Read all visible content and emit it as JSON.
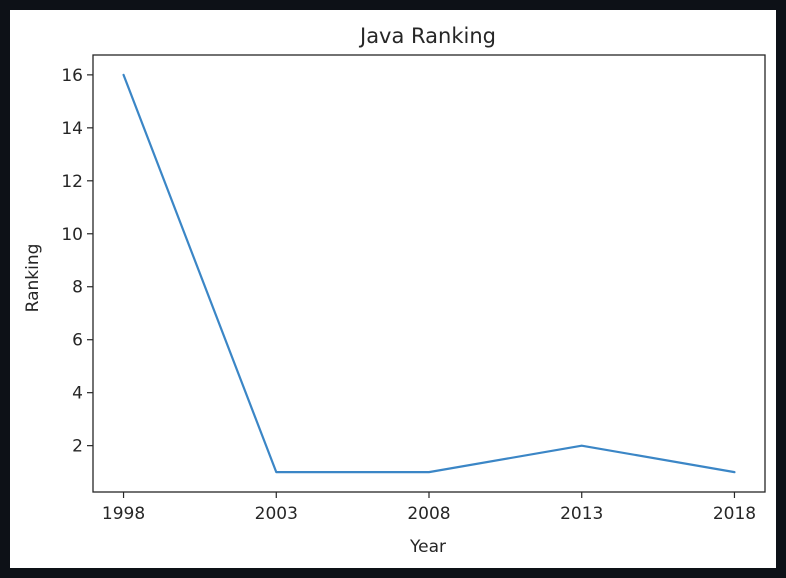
{
  "page": {
    "background": "#0d1117",
    "card_background": "#ffffff"
  },
  "chart_data": {
    "type": "line",
    "title": "Java Ranking",
    "xlabel": "Year",
    "ylabel": "Ranking",
    "x": [
      1998,
      2003,
      2008,
      2013,
      2018
    ],
    "series": [
      {
        "values": [
          16,
          1,
          1,
          2,
          1
        ],
        "color": "#3b86c6"
      }
    ],
    "xticks": [
      "1998",
      "2003",
      "2008",
      "2013",
      "2018"
    ],
    "yticks": [
      "2",
      "4",
      "6",
      "8",
      "10",
      "12",
      "14",
      "16"
    ],
    "xlim": [
      1997,
      2019
    ],
    "ylim": [
      0.25,
      16.75
    ],
    "grid": false
  }
}
